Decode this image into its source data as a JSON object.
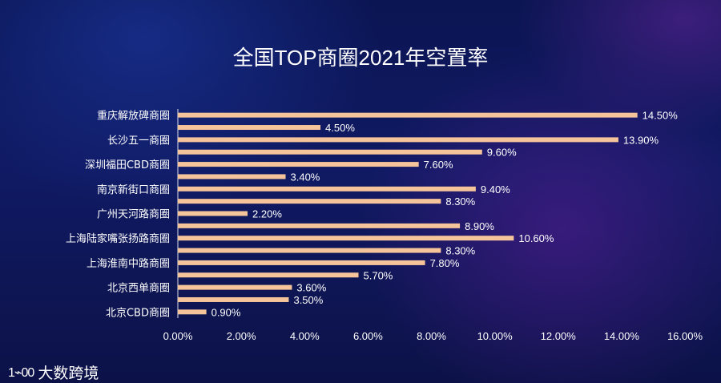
{
  "title": "全国TOP商圈2021年空置率",
  "brand": {
    "mark": "1⌁00",
    "name": "大数跨境"
  },
  "colors": {
    "bar": "#f6c49a",
    "text": "#ffffff",
    "axis": "#ffffff"
  },
  "chart_data": {
    "type": "bar",
    "orientation": "horizontal",
    "title": "全国TOP商圈2021年空置率",
    "xlim": [
      0,
      16
    ],
    "xticks": [
      "0.00%",
      "2.00%",
      "4.00%",
      "6.00%",
      "8.00%",
      "10.00%",
      "12.00%",
      "14.00%",
      "16.00%"
    ],
    "grid": false,
    "values": [
      14.5,
      4.5,
      13.9,
      9.6,
      7.6,
      3.4,
      9.4,
      8.3,
      2.2,
      8.9,
      10.6,
      8.3,
      7.8,
      5.7,
      3.6,
      3.5,
      0.9
    ],
    "value_labels": [
      "14.50%",
      "4.50%",
      "13.90%",
      "9.60%",
      "7.60%",
      "3.40%",
      "9.40%",
      "8.30%",
      "2.20%",
      "8.90%",
      "10.60%",
      "8.30%",
      "7.80%",
      "5.70%",
      "3.60%",
      "3.50%",
      "0.90%"
    ],
    "category_labels": [
      {
        "bar_index": 0,
        "label": "重庆解放碑商圈"
      },
      {
        "bar_index": 2,
        "label": "长沙五一商圈"
      },
      {
        "bar_index": 4,
        "label": "深圳福田CBD商圈"
      },
      {
        "bar_index": 6,
        "label": "南京新街口商圈"
      },
      {
        "bar_index": 8,
        "label": "广州天河路商圈"
      },
      {
        "bar_index": 10,
        "label": "上海陆家嘴张扬路商圈"
      },
      {
        "bar_index": 12,
        "label": "上海淮南中路商圈"
      },
      {
        "bar_index": 14,
        "label": "北京西单商圈"
      },
      {
        "bar_index": 16,
        "label": "北京CBD商圈"
      }
    ]
  }
}
